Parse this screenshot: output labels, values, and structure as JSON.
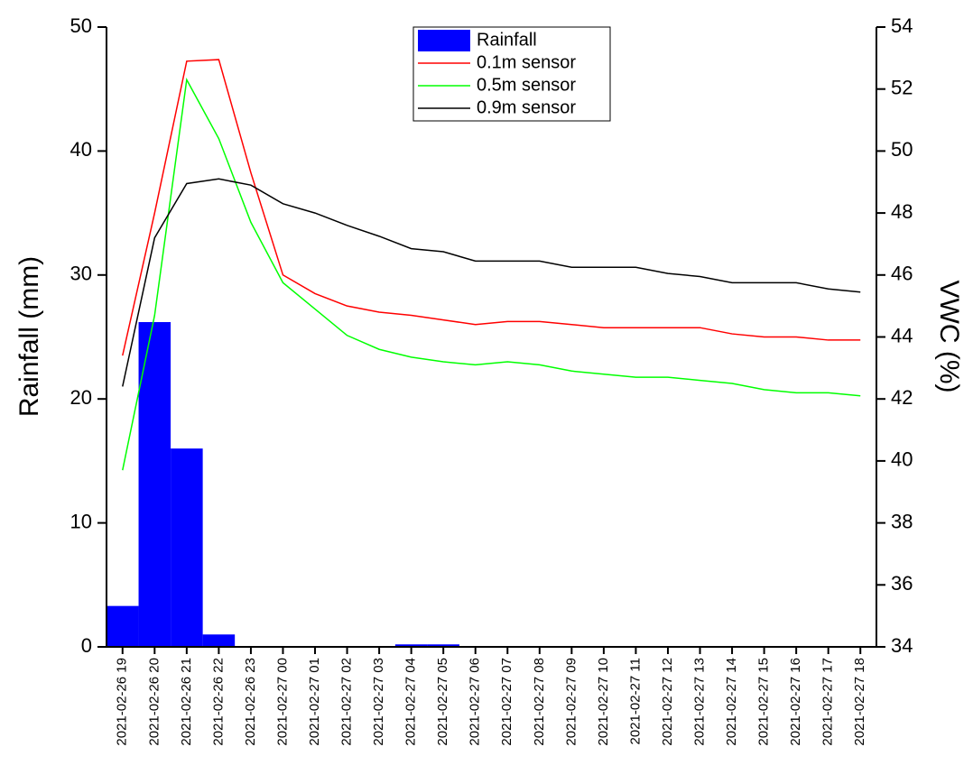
{
  "chart_data": {
    "type": "combo",
    "y_label": "Rainfall (mm)",
    "y2_label": "VWC (%)",
    "categories": [
      "2021-02-26 19",
      "2021-02-26 20",
      "2021-02-26 21",
      "2021-02-26 22",
      "2021-02-26 23",
      "2021-02-27 00",
      "2021-02-27 01",
      "2021-02-27 02",
      "2021-02-27 03",
      "2021-02-27 04",
      "2021-02-27 05",
      "2021-02-27 06",
      "2021-02-27 07",
      "2021-02-27 08",
      "2021-02-27 09",
      "2021-02-27 10",
      "2021-02-27 11",
      "2021-02-27 12",
      "2021-02-27 13",
      "2021-02-27 14",
      "2021-02-27 15",
      "2021-02-27 16",
      "2021-02-27 17",
      "2021-02-27 18"
    ],
    "series": [
      {
        "name": "Rainfall",
        "type": "bar",
        "axis": "y",
        "color": "#0000ff",
        "values": [
          3.3,
          26.2,
          16.0,
          1.0,
          0,
          0,
          0,
          0,
          0,
          0.2,
          0.2,
          0,
          0,
          0,
          0,
          0,
          0,
          0,
          0,
          0,
          0,
          0,
          0,
          0
        ]
      },
      {
        "name": "0.1m sensor",
        "type": "line",
        "axis": "y2",
        "color": "#ff0000",
        "values": [
          43.4,
          48.0,
          52.9,
          52.95,
          49.3,
          46.0,
          45.4,
          45.0,
          44.8,
          44.7,
          44.55,
          44.4,
          44.5,
          44.5,
          44.4,
          44.3,
          44.3,
          44.3,
          44.3,
          44.1,
          44.0,
          44.0,
          43.9,
          43.9
        ]
      },
      {
        "name": "0.5m sensor",
        "type": "line",
        "axis": "y2",
        "color": "#00ff00",
        "values": [
          39.7,
          44.7,
          52.3,
          50.4,
          47.7,
          45.75,
          44.9,
          44.05,
          43.6,
          43.35,
          43.2,
          43.1,
          43.2,
          43.1,
          42.9,
          42.8,
          42.7,
          42.7,
          42.6,
          42.5,
          42.3,
          42.2,
          42.2,
          42.1
        ]
      },
      {
        "name": "0.9m sensor",
        "type": "line",
        "axis": "y2",
        "color": "#000000",
        "values": [
          42.4,
          47.2,
          48.95,
          49.1,
          48.9,
          48.3,
          48.0,
          47.6,
          47.25,
          46.85,
          46.75,
          46.45,
          46.45,
          46.45,
          46.25,
          46.25,
          46.25,
          46.05,
          45.95,
          45.75,
          45.75,
          45.75,
          45.55,
          45.45
        ]
      }
    ],
    "ylim": [
      0,
      50
    ],
    "yticks": [
      0,
      10,
      20,
      30,
      40,
      50
    ],
    "y2lim": [
      34,
      54
    ],
    "y2ticks": [
      34,
      36,
      38,
      40,
      42,
      44,
      46,
      48,
      50,
      52,
      54
    ],
    "legend": "top"
  }
}
